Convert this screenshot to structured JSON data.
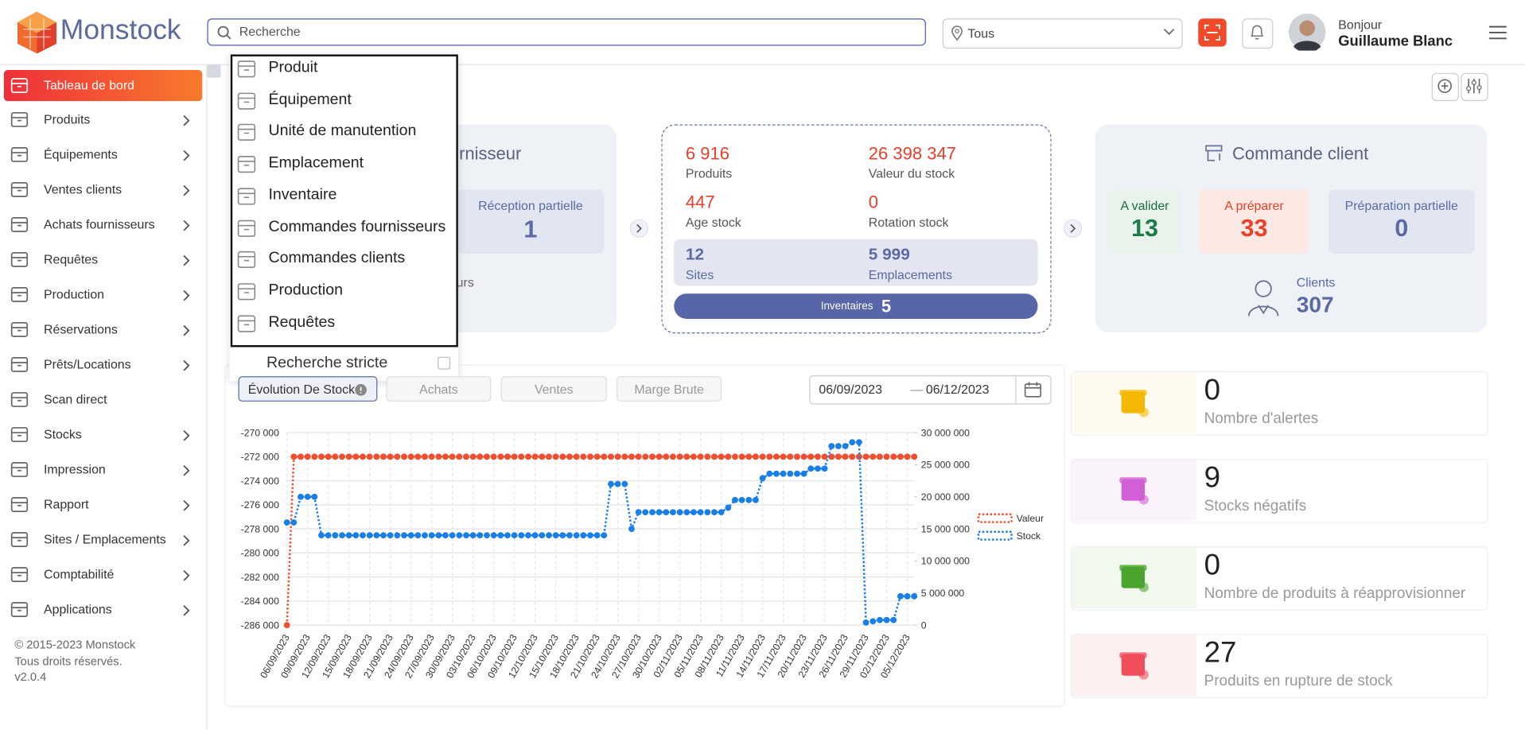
{
  "header": {
    "logo": "Monstock",
    "search_placeholder": "Recherche",
    "location": "Tous",
    "greeting": "Bonjour",
    "user": "Guillaume Blanc"
  },
  "sidebar": {
    "items": [
      {
        "label": "Tableau de bord",
        "active": true,
        "chevron": false
      },
      {
        "label": "Produits",
        "chevron": true
      },
      {
        "label": "Équipements",
        "chevron": true
      },
      {
        "label": "Ventes clients",
        "chevron": true
      },
      {
        "label": "Achats fournisseurs",
        "chevron": true
      },
      {
        "label": "Requêtes",
        "chevron": true
      },
      {
        "label": "Production",
        "chevron": true
      },
      {
        "label": "Réservations",
        "chevron": true
      },
      {
        "label": "Prêts/Locations",
        "chevron": true
      },
      {
        "label": "Scan direct",
        "chevron": false
      },
      {
        "label": "Stocks",
        "chevron": true
      },
      {
        "label": "Impression",
        "chevron": true
      },
      {
        "label": "Rapport",
        "chevron": true
      },
      {
        "label": "Sites / Emplacements",
        "chevron": true
      },
      {
        "label": "Comptabilité",
        "chevron": true
      },
      {
        "label": "Applications",
        "chevron": true
      }
    ],
    "footer": [
      "© 2015-2023 Monstock",
      "Tous droits réservés.",
      "v2.0.4"
    ]
  },
  "dropdown": {
    "items": [
      "Produit",
      "Équipement",
      "Unité de manutention",
      "Emplacement",
      "Inventaire",
      "Commandes fournisseurs",
      "Commandes clients",
      "Production",
      "Requêtes"
    ],
    "strict": "Recherche stricte"
  },
  "supplier_card": {
    "title_fragment": "urnisseur",
    "partial_label": "Réception partielle",
    "partial_value": "1",
    "fragment": "eurs"
  },
  "stock_card": {
    "stats": [
      {
        "value": "6 916",
        "label": "Produits"
      },
      {
        "value": "26 398 347",
        "label": "Valeur du stock"
      },
      {
        "value": "447",
        "label": "Age stock"
      },
      {
        "value": "0",
        "label": "Rotation stock"
      }
    ],
    "sites": {
      "value": "12",
      "label": "Sites"
    },
    "locations": {
      "value": "5 999",
      "label": "Emplacements"
    },
    "inventories": {
      "label": "Inventaires",
      "value": "5"
    }
  },
  "client_card": {
    "title": "Commande client",
    "boxes": [
      {
        "label": "A valider",
        "value": "13"
      },
      {
        "label": "A préparer",
        "value": "33"
      },
      {
        "label": "Préparation partielle",
        "value": "0"
      }
    ],
    "clients": {
      "label": "Clients",
      "value": "307"
    }
  },
  "tabs": [
    "Évolution De Stock",
    "Achats",
    "Ventes",
    "Marge Brute"
  ],
  "date_range": {
    "from": "06/09/2023",
    "separator": "—",
    "to": "06/12/2023"
  },
  "stat_cards": [
    {
      "value": "0",
      "label": "Nombre d'alertes"
    },
    {
      "value": "9",
      "label": "Stocks négatifs"
    },
    {
      "value": "0",
      "label": "Nombre de produits à réapprovisionner"
    },
    {
      "value": "27",
      "label": "Produits en rupture de stock"
    }
  ],
  "chart_data": {
    "type": "line",
    "categories": [
      "06/09/2023",
      null,
      null,
      "09/09/2023",
      null,
      null,
      "12/09/2023",
      null,
      null,
      "15/09/2023",
      null,
      null,
      "18/09/2023",
      null,
      null,
      "21/09/2023",
      null,
      null,
      "24/09/2023",
      null,
      null,
      "27/09/2023",
      null,
      null,
      "30/09/2023",
      null,
      null,
      "03/10/2023",
      null,
      null,
      "06/10/2023",
      null,
      null,
      "09/10/2023",
      null,
      null,
      "12/10/2023",
      null,
      null,
      "15/10/2023",
      null,
      null,
      "18/10/2023",
      null,
      null,
      "21/10/2023",
      null,
      null,
      "24/10/2023",
      null,
      null,
      "27/10/2023",
      null,
      null,
      "30/10/2023",
      null,
      null,
      "02/11/2023",
      null,
      null,
      "05/11/2023",
      null,
      null,
      "08/11/2023",
      null,
      null,
      "11/11/2023",
      null,
      null,
      "14/11/2023",
      null,
      null,
      "17/11/2023",
      null,
      null,
      "20/11/2023",
      null,
      null,
      "23/11/2023",
      null,
      null,
      "26/11/2023",
      null,
      null,
      "29/11/2023",
      null,
      null,
      "02/12/2023",
      null,
      null,
      "05/12/2023",
      null
    ],
    "series": [
      {
        "name": "Valeur",
        "color": "#f04e30",
        "axis": "y",
        "values": [
          -286000,
          -272000,
          -272000,
          -272000,
          -272000,
          -272000,
          -272000,
          -272000,
          -272000,
          -272000,
          -272000,
          -272000,
          -272000,
          -272000,
          -272000,
          -272000,
          -272000,
          -272000,
          -272000,
          -272000,
          -272000,
          -272000,
          -272000,
          -272000,
          -272000,
          -272000,
          -272000,
          -272000,
          -272000,
          -272000,
          -272000,
          -272000,
          -272000,
          -272000,
          -272000,
          -272000,
          -272000,
          -272000,
          -272000,
          -272000,
          -272000,
          -272000,
          -272000,
          -272000,
          -272000,
          -272000,
          -272000,
          -272000,
          -272000,
          -272000,
          -272000,
          -272000,
          -272000,
          -272000,
          -272000,
          -272000,
          -272000,
          -272000,
          -272000,
          -272000,
          -272000,
          -272000,
          -272000,
          -272000,
          -272000,
          -272000,
          -272000,
          -272000,
          -272000,
          -272000,
          -272000,
          -272000,
          -272000,
          -272000,
          -272000,
          -272000,
          -272000,
          -272000,
          -272000,
          -272000,
          -272000,
          -272000,
          -272000,
          -272000,
          -272000,
          -272000,
          -272000,
          -272000,
          -272000,
          -272000,
          -272000,
          -272000
        ]
      },
      {
        "name": "Stock",
        "color": "#1a7ee8",
        "axis": "y2",
        "values": [
          16000000,
          16000000,
          20000000,
          20000000,
          20000000,
          14000000,
          14000000,
          14000000,
          14000000,
          14000000,
          14000000,
          14000000,
          14000000,
          14000000,
          14000000,
          14000000,
          14000000,
          14000000,
          14000000,
          14000000,
          14000000,
          14000000,
          14000000,
          14000000,
          14000000,
          14000000,
          14000000,
          14000000,
          14000000,
          14000000,
          14000000,
          14000000,
          14000000,
          14000000,
          14000000,
          14000000,
          14000000,
          14000000,
          14000000,
          14000000,
          14000000,
          14000000,
          14000000,
          14000000,
          14000000,
          14000000,
          14000000,
          22000000,
          22000000,
          22000000,
          15000000,
          17600000,
          17600000,
          17600000,
          17600000,
          17600000,
          17600000,
          17600000,
          17600000,
          17600000,
          17600000,
          17600000,
          17600000,
          17600000,
          18300000,
          19500000,
          19500000,
          19500000,
          19500000,
          22900000,
          23600000,
          23600000,
          23600000,
          23600000,
          23600000,
          23600000,
          24400000,
          24400000,
          24400000,
          27900000,
          27900000,
          27900000,
          28500000,
          28500000,
          400000,
          600000,
          800000,
          800000,
          800000,
          4500000,
          4500000,
          4500000
        ]
      }
    ],
    "ylim": [
      -286000,
      -270000
    ],
    "yticks": [
      {
        "value": -270000,
        "label": "-270 000"
      },
      {
        "value": -272000,
        "label": "-272 000"
      },
      {
        "value": -274000,
        "label": "-274 000"
      },
      {
        "value": -276000,
        "label": "-276 000"
      },
      {
        "value": -278000,
        "label": "-278 000"
      },
      {
        "value": -280000,
        "label": "-280 000"
      },
      {
        "value": -282000,
        "label": "-282 000"
      },
      {
        "value": -284000,
        "label": "-284 000"
      },
      {
        "value": -286000,
        "label": "-286 000"
      }
    ],
    "y2lim": [
      0,
      30000000
    ],
    "y2ticks": [
      {
        "value": 30000000,
        "label": "30 000 000"
      },
      {
        "value": 25000000,
        "label": "25 000 000"
      },
      {
        "value": 20000000,
        "label": "20 000 000"
      },
      {
        "value": 15000000,
        "label": "15 000 000"
      },
      {
        "value": 10000000,
        "label": "10 000 000"
      },
      {
        "value": 5000000,
        "label": "5 000 000"
      },
      0
    ],
    "grid": true,
    "legend": "right"
  }
}
